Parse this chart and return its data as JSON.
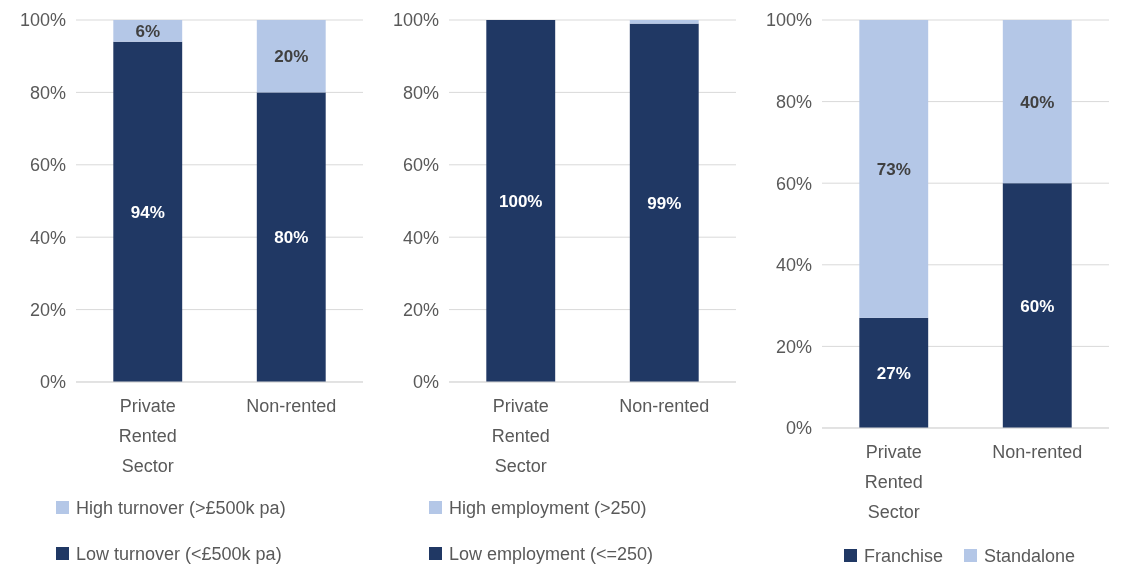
{
  "chart_data": [
    {
      "type": "bar",
      "stacked": true,
      "categories": [
        "Private Rented Sector",
        "Non-rented"
      ],
      "series": [
        {
          "name": "Low turnover (<£500k pa)",
          "color": "#203864",
          "values": [
            94,
            80
          ],
          "value_labels": [
            "94%",
            "80%"
          ]
        },
        {
          "name": "High turnover (>£500k pa)",
          "color": "#b4c7e7",
          "values": [
            6,
            20
          ],
          "value_labels": [
            "6%",
            "20%"
          ]
        }
      ],
      "ylim": [
        0,
        100
      ],
      "yticks": [
        {
          "value": 0,
          "label": "0%"
        },
        {
          "value": 20,
          "label": "20%"
        },
        {
          "value": 40,
          "label": "40%"
        },
        {
          "value": 60,
          "label": "60%"
        },
        {
          "value": 80,
          "label": "80%"
        },
        {
          "value": 100,
          "label": "100%"
        }
      ],
      "grid": "y",
      "legend": "bottom"
    },
    {
      "type": "bar",
      "stacked": true,
      "categories": [
        "Private Rented Sector",
        "Non-rented"
      ],
      "series": [
        {
          "name": "Low employment (<=250)",
          "color": "#203864",
          "values": [
            100,
            99
          ],
          "value_labels": [
            "100%",
            "99%"
          ]
        },
        {
          "name": "High employment (>250)",
          "color": "#b4c7e7",
          "values": [
            0,
            1
          ],
          "value_labels": [
            null,
            null
          ]
        }
      ],
      "ylim": [
        0,
        100
      ],
      "yticks": [
        {
          "value": 0,
          "label": "0%"
        },
        {
          "value": 20,
          "label": "20%"
        },
        {
          "value": 40,
          "label": "40%"
        },
        {
          "value": 60,
          "label": "60%"
        },
        {
          "value": 80,
          "label": "80%"
        },
        {
          "value": 100,
          "label": "100%"
        }
      ],
      "grid": "y",
      "legend": "bottom"
    },
    {
      "type": "bar",
      "stacked": true,
      "categories": [
        "Private Rented Sector",
        "Non-rented"
      ],
      "series": [
        {
          "name": "Franchise",
          "color": "#203864",
          "values": [
            27,
            60
          ],
          "value_labels": [
            "27%",
            "60%"
          ]
        },
        {
          "name": "Standalone",
          "color": "#b4c7e7",
          "values": [
            73,
            40
          ],
          "value_labels": [
            "73%",
            "40%"
          ]
        }
      ],
      "ylim": [
        0,
        100
      ],
      "yticks": [
        {
          "value": 0,
          "label": "0%"
        },
        {
          "value": 20,
          "label": "20%"
        },
        {
          "value": 40,
          "label": "40%"
        },
        {
          "value": 60,
          "label": "60%"
        },
        {
          "value": 80,
          "label": "80%"
        },
        {
          "value": 100,
          "label": "100%"
        }
      ],
      "grid": "y",
      "legend": "bottom"
    }
  ]
}
